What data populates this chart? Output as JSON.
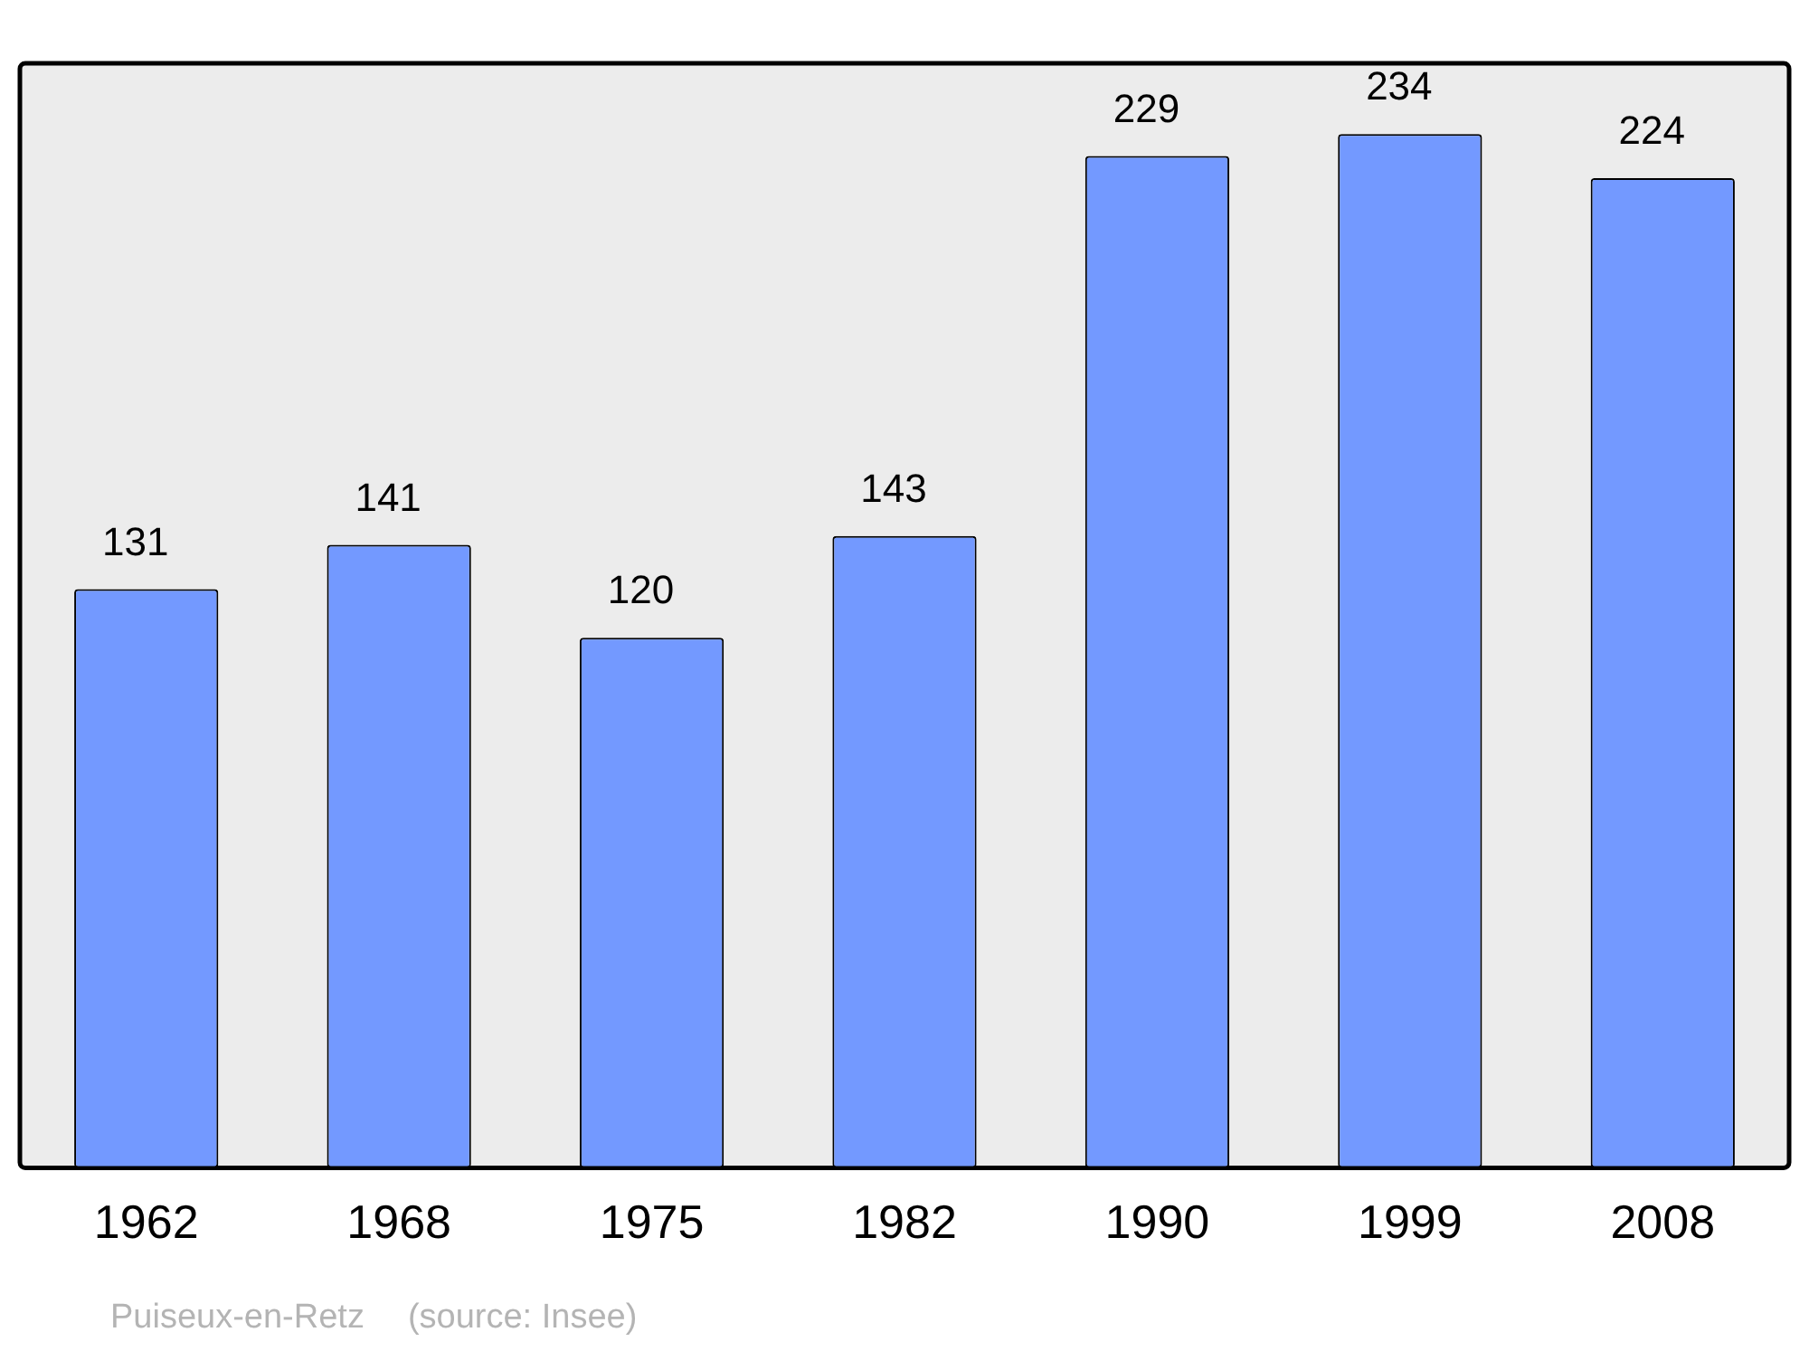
{
  "chart_data": {
    "type": "bar",
    "categories": [
      "1962",
      "1968",
      "1975",
      "1982",
      "1990",
      "1999",
      "2008"
    ],
    "values": [
      131,
      141,
      120,
      143,
      229,
      234,
      224
    ],
    "color": "#7399ff",
    "data_labels": true,
    "grid": false,
    "legend": false,
    "annotations": [
      "Puiseux-en-Retz",
      "(source: Insee)"
    ]
  }
}
